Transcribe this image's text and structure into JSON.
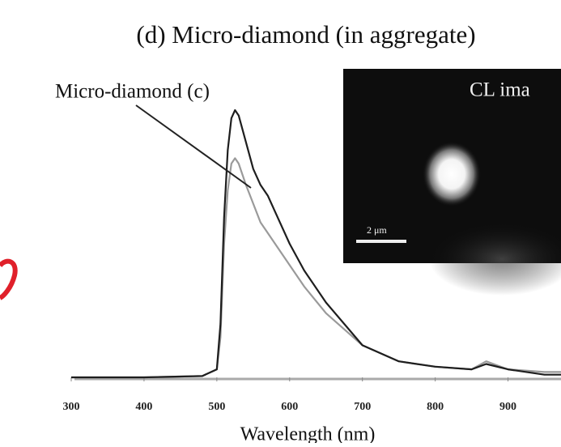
{
  "chart_data": {
    "type": "line",
    "title": "(d) Micro-diamond (in aggregate)",
    "annotation": "Micro-diamond (c)",
    "inset_title": "CL ima",
    "inset_scale_label": "2 μm",
    "xlabel": "Wavelength (nm)",
    "x": [
      300,
      400,
      480,
      500,
      505,
      510,
      515,
      520,
      525,
      530,
      540,
      550,
      560,
      570,
      580,
      600,
      620,
      650,
      700,
      750,
      800,
      850,
      870,
      900,
      950,
      975
    ],
    "series": [
      {
        "color": "#1e1e1e",
        "values": [
          0,
          0,
          0.5,
          3,
          20,
          60,
          85,
          97,
          100,
          98,
          88,
          78,
          72,
          68,
          62,
          50,
          40,
          28,
          12,
          6,
          4,
          3,
          5,
          3,
          1,
          1
        ]
      },
      {
        "color": "#9a9a9a",
        "values": [
          0,
          0,
          0.5,
          3,
          15,
          50,
          70,
          80,
          82,
          80,
          72,
          65,
          58,
          54,
          50,
          42,
          34,
          24,
          12,
          6,
          4,
          3,
          6,
          3,
          2,
          2
        ]
      }
    ],
    "xlim": [
      300,
      975
    ],
    "xticks": [
      300,
      400,
      500,
      600,
      700,
      800,
      900
    ],
    "ylim": [
      0,
      110
    ]
  }
}
